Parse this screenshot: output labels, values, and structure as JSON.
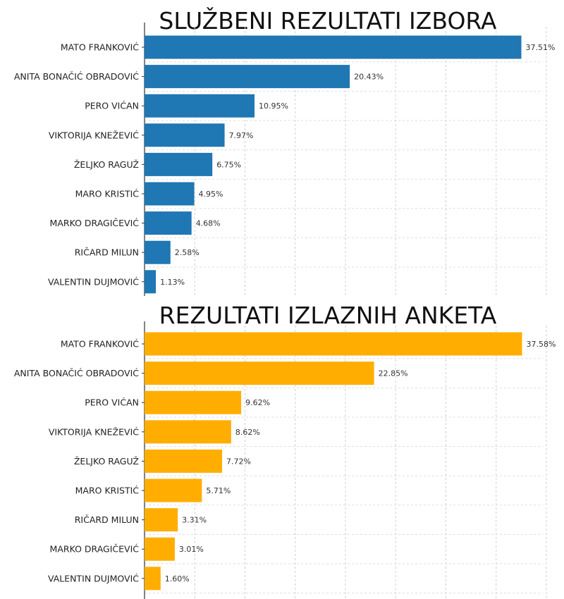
{
  "chart_data": [
    {
      "type": "bar",
      "orientation": "horizontal",
      "title": "SLUŽBENI REZULTATI IZBORA",
      "color": "#1f77b4",
      "categories": [
        "MATO FRANKOVIĆ",
        "ANITA BONAČIĆ OBRADOVIĆ",
        "PERO VIĆAN",
        "VIKTORIJA KNEŽEVIĆ",
        "ŽELJKO RAGUŽ",
        "MARO KRISTIĆ",
        "MARKO DRAGIČEVIĆ",
        "RIČARD MILUN",
        "VALENTIN DUJMOVIĆ"
      ],
      "values": [
        37.51,
        20.43,
        10.95,
        7.97,
        6.75,
        4.95,
        4.68,
        2.58,
        1.13
      ],
      "value_labels": [
        "37.51%",
        "20.43%",
        "10.95%",
        "7.97%",
        "6.75%",
        "4.95%",
        "4.68%",
        "2.58%",
        "1.13%"
      ],
      "xlim": [
        0,
        40
      ],
      "grid": true,
      "xlabel": "",
      "ylabel": ""
    },
    {
      "type": "bar",
      "orientation": "horizontal",
      "title": "REZULTATI IZLAZNIH ANKETA",
      "color": "#ffae00",
      "categories": [
        "MATO FRANKOVIĆ",
        "ANITA BONAČIĆ OBRADOVIĆ",
        "PERO VIĆAN",
        "VIKTORIJA KNEŽEVIĆ",
        "ŽELJKO RAGUŽ",
        "MARO KRISTIĆ",
        "RIČARD MILUN",
        "MARKO DRAGIČEVIĆ",
        "VALENTIN DUJMOVIĆ"
      ],
      "values": [
        37.58,
        22.85,
        9.62,
        8.62,
        7.72,
        5.71,
        3.31,
        3.01,
        1.6
      ],
      "value_labels": [
        "37.58%",
        "22.85%",
        "9.62%",
        "8.62%",
        "7.72%",
        "5.71%",
        "3.31%",
        "3.01%",
        "1.60%"
      ],
      "xlim": [
        0,
        40
      ],
      "grid": true,
      "xlabel": "",
      "ylabel": ""
    }
  ]
}
